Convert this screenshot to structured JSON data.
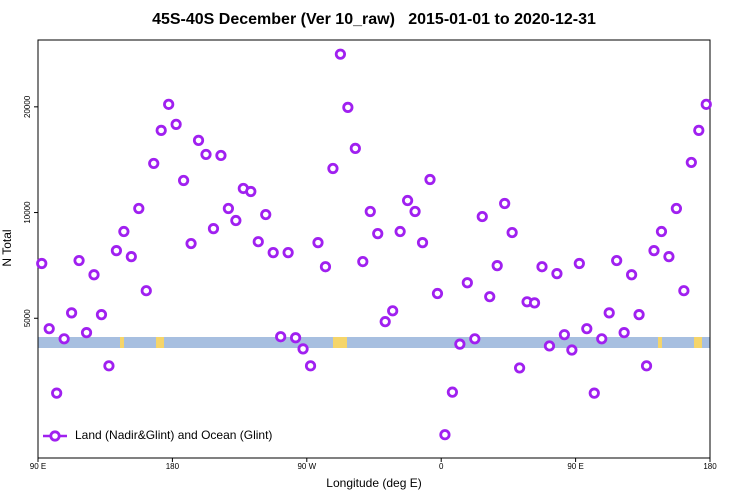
{
  "chart_data": {
    "type": "scatter",
    "title": "45S-40S December (Ver 10_raw)   2015-01-01 to 2020-12-31",
    "xlabel": "Longitude (deg E)",
    "ylabel": "N Total",
    "log_y": true,
    "legend": "bottom-left",
    "xlim": [
      90,
      540
    ],
    "xticks": [
      {
        "value": 90,
        "label": "90 E"
      },
      180,
      {
        "value": 270,
        "label": "90 W"
      },
      {
        "value": 360,
        "label": "0"
      },
      {
        "value": 450,
        "label": "90 E"
      },
      {
        "value": 540,
        "label": "180"
      }
    ],
    "ylim": [
      2000,
      31000
    ],
    "yticks": [
      5000,
      10000,
      20000
    ],
    "x": [
      92.5,
      97.5,
      102.5,
      107.5,
      112.5,
      117.5,
      122.5,
      127.5,
      132.5,
      137.5,
      142.5,
      147.5,
      152.5,
      157.5,
      162.5,
      167.5,
      172.5,
      177.5,
      182.5,
      187.5,
      192.5,
      197.5,
      202.5,
      207.5,
      212.5,
      217.5,
      222.5,
      227.5,
      232.5,
      237.5,
      242.5,
      247.5,
      252.5,
      257.5,
      262.5,
      267.5,
      272.5,
      277.5,
      282.5,
      287.5,
      292.5,
      297.5,
      302.5,
      307.5,
      312.5,
      317.5,
      322.5,
      327.5,
      332.5,
      337.5,
      342.5,
      347.5,
      352.5,
      357.5,
      362.5,
      367.5,
      372.5,
      377.5,
      382.5,
      387.5,
      392.5,
      397.5,
      402.5,
      407.5,
      412.5,
      417.5,
      422.5,
      427.5,
      432.5,
      437.5,
      442.5,
      447.5,
      452.5,
      457.5,
      462.5,
      467.5,
      472.5,
      477.5,
      482.5,
      487.5,
      492.5,
      497.5,
      502.5,
      507.5,
      512.5,
      517.5,
      522.5,
      527.5,
      532.5,
      537.5
    ],
    "series": [
      {
        "name": "Land (Nadir&Glint) and Ocean (Glint)",
        "color": "#a020f0",
        "values": [
          7160,
          4670,
          3060,
          4370,
          5180,
          7300,
          4550,
          6650,
          5120,
          3660,
          7790,
          8830,
          7490,
          10270,
          5990,
          13800,
          17140,
          20330,
          17830,
          12340,
          8160,
          16050,
          14640,
          9000,
          14540,
          10270,
          9490,
          11710,
          11480,
          8260,
          9870,
          7690,
          4430,
          7690,
          4400,
          4090,
          3660,
          8210,
          7010,
          13350,
          28250,
          19930,
          15230,
          7250,
          10070,
          8710,
          4890,
          5250,
          8830,
          10820,
          10070,
          8210,
          12420,
          5880,
          2330,
          3080,
          4220,
          6310,
          4370,
          9740,
          5760,
          7060,
          10610,
          8770,
          3610,
          5570,
          5530,
          7010,
          4170,
          6700,
          4490,
          4060,
          7160,
          4670,
          3060,
          4370,
          5180,
          7300,
          4550,
          6650,
          5120,
          3660,
          7790,
          8830,
          7490,
          10270,
          5990,
          13890,
          17140,
          20330
        ]
      }
    ]
  }
}
